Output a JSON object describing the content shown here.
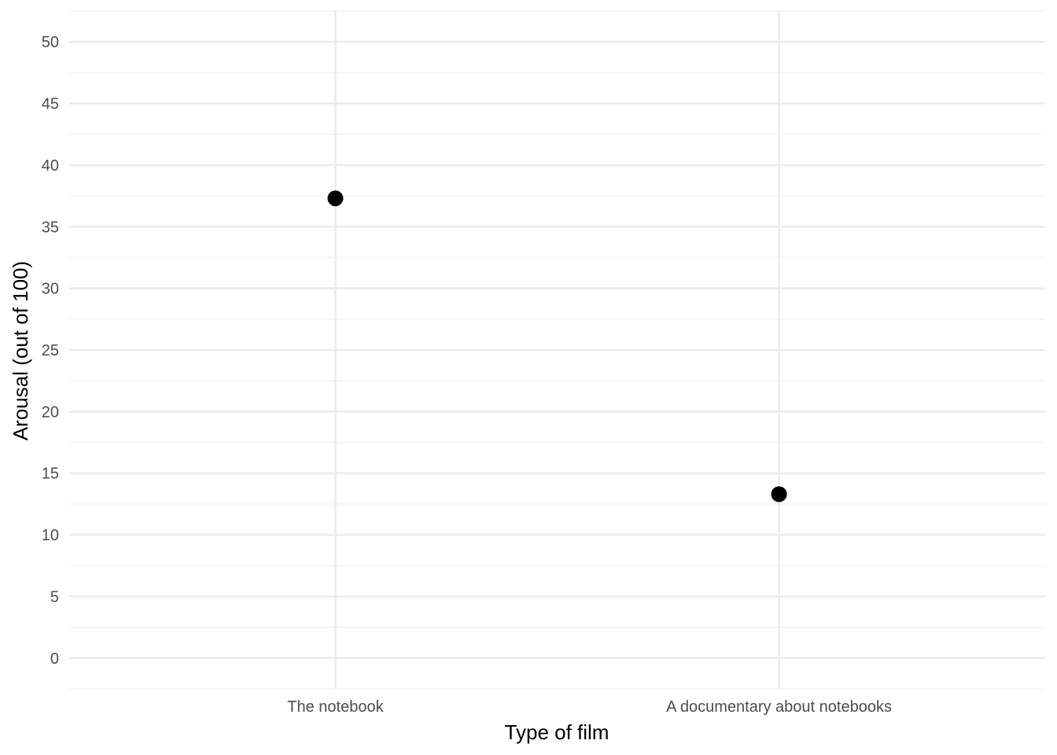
{
  "chart_data": {
    "type": "scatter",
    "title": "",
    "xlabel": "Type of film",
    "ylabel": "Arousal (out of 100)",
    "categories": [
      "The notebook",
      "A documentary about notebooks"
    ],
    "values": [
      37.3,
      13.3
    ],
    "ylim": [
      -2.5,
      52.5
    ],
    "yticks": [
      0,
      5,
      10,
      15,
      20,
      25,
      30,
      35,
      40,
      45,
      50
    ],
    "grid": true,
    "legend": "none",
    "colors": {
      "point": "#000000",
      "grid_major": "#ebebeb",
      "grid_minor": "#f2f2f2",
      "tick_text": "#4d4d4d"
    }
  }
}
